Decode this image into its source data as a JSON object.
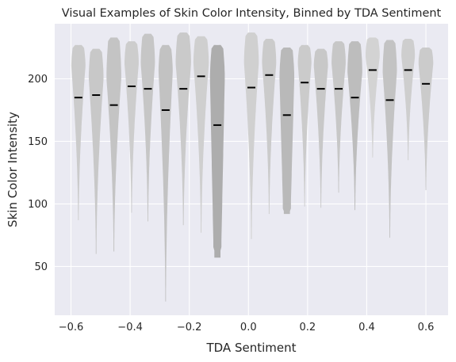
{
  "chart_data": {
    "type": "violin",
    "title": "Visual Examples of Skin Color Intensity, Binned by TDA Sentiment",
    "xlabel": "TDA Sentiment",
    "ylabel": "Skin Color Intensity",
    "xlim": [
      -0.655,
      0.675
    ],
    "ylim": [
      11,
      244
    ],
    "x_ticks": [
      -0.6,
      -0.4,
      -0.2,
      0.0,
      0.2,
      0.4,
      0.6
    ],
    "x_tick_labels": [
      "−0.6",
      "−0.4",
      "−0.2",
      "0.0",
      "0.2",
      "0.4",
      "0.6"
    ],
    "y_ticks": [
      50,
      100,
      150,
      200
    ],
    "y_tick_labels": [
      "50",
      "100",
      "150",
      "200"
    ],
    "grid": true,
    "background": "#eaeaf2",
    "median_color": "#000000",
    "violins": [
      {
        "x": -0.575,
        "min": 87,
        "max": 227,
        "median": 185,
        "width": 0.048,
        "peak": 210,
        "shape": "mid",
        "color": "#cbcbcb"
      },
      {
        "x": -0.515,
        "min": 60,
        "max": 224,
        "median": 187,
        "width": 0.05,
        "peak": 200,
        "shape": "mid",
        "color": "#c8c8c8"
      },
      {
        "x": -0.455,
        "min": 62,
        "max": 233,
        "median": 179,
        "width": 0.05,
        "peak": 200,
        "shape": "mid",
        "color": "#c4c4c4"
      },
      {
        "x": -0.395,
        "min": 93,
        "max": 230,
        "median": 194,
        "width": 0.048,
        "peak": 212,
        "shape": "mid",
        "color": "#cdcdcd"
      },
      {
        "x": -0.34,
        "min": 86,
        "max": 236,
        "median": 192,
        "width": 0.048,
        "peak": 212,
        "shape": "mid",
        "color": "#c6c6c6"
      },
      {
        "x": -0.28,
        "min": 22,
        "max": 227,
        "median": 175,
        "width": 0.048,
        "peak": 205,
        "shape": "mid",
        "color": "#c2c2c2"
      },
      {
        "x": -0.22,
        "min": 83,
        "max": 237,
        "median": 192,
        "width": 0.052,
        "peak": 212,
        "shape": "mid",
        "color": "#cacaca"
      },
      {
        "x": -0.16,
        "min": 77,
        "max": 234,
        "median": 202,
        "width": 0.052,
        "peak": 212,
        "shape": "mid",
        "color": "#cfcfcf"
      },
      {
        "x": -0.105,
        "min": 57,
        "max": 227,
        "median": 163,
        "width": 0.05,
        "peak": 200,
        "shape": "flat",
        "color": "#adadad"
      },
      {
        "x": 0.01,
        "min": 72,
        "max": 237,
        "median": 193,
        "width": 0.05,
        "peak": 212,
        "shape": "mid",
        "color": "#d0d0d0"
      },
      {
        "x": 0.07,
        "min": 92,
        "max": 232,
        "median": 203,
        "width": 0.048,
        "peak": 212,
        "shape": "mid",
        "color": "#cbcbcb"
      },
      {
        "x": 0.13,
        "min": 92,
        "max": 225,
        "median": 171,
        "width": 0.05,
        "peak": 200,
        "shape": "flat",
        "color": "#b9b9b9"
      },
      {
        "x": 0.19,
        "min": 98,
        "max": 227,
        "median": 197,
        "width": 0.046,
        "peak": 212,
        "shape": "mid",
        "color": "#cbcbcb"
      },
      {
        "x": 0.245,
        "min": 97,
        "max": 224,
        "median": 192,
        "width": 0.048,
        "peak": 210,
        "shape": "mid",
        "color": "#c8c8c8"
      },
      {
        "x": 0.305,
        "min": 109,
        "max": 230,
        "median": 192,
        "width": 0.048,
        "peak": 212,
        "shape": "mid",
        "color": "#c7c7c7"
      },
      {
        "x": 0.36,
        "min": 95,
        "max": 230,
        "median": 185,
        "width": 0.05,
        "peak": 205,
        "shape": "mid",
        "color": "#bdbdbd"
      },
      {
        "x": 0.42,
        "min": 137,
        "max": 233,
        "median": 207,
        "width": 0.048,
        "peak": 218,
        "shape": "mid",
        "color": "#d3d3d3"
      },
      {
        "x": 0.478,
        "min": 73,
        "max": 231,
        "median": 183,
        "width": 0.048,
        "peak": 205,
        "shape": "mid",
        "color": "#c3c3c3"
      },
      {
        "x": 0.54,
        "min": 135,
        "max": 232,
        "median": 207,
        "width": 0.046,
        "peak": 218,
        "shape": "mid",
        "color": "#cecece"
      },
      {
        "x": 0.6,
        "min": 111,
        "max": 225,
        "median": 196,
        "width": 0.05,
        "peak": 212,
        "shape": "mid",
        "color": "#cbcbcb"
      }
    ]
  }
}
